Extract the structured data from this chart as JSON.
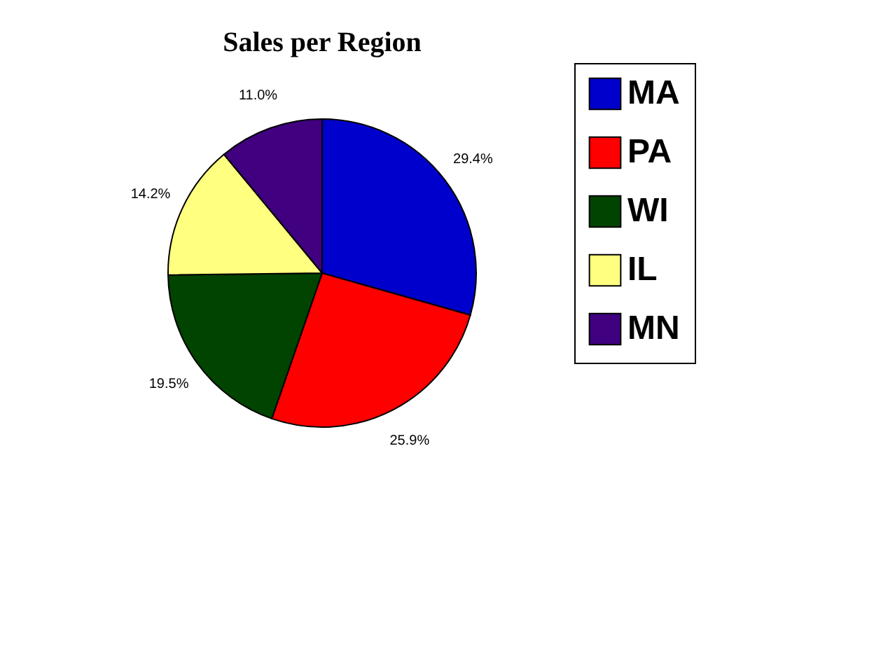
{
  "chart_data": {
    "type": "pie",
    "title": "Sales per Region",
    "categories": [
      "MA",
      "PA",
      "WI",
      "IL",
      "MN"
    ],
    "values": [
      29.4,
      25.9,
      19.5,
      14.2,
      11.0
    ],
    "value_labels": [
      "29.4%",
      "25.9%",
      "19.5%",
      "14.2%",
      "11.0%"
    ],
    "colors": [
      "#0000cc",
      "#ff0000",
      "#004400",
      "#ffff80",
      "#400080"
    ],
    "legend": "right"
  }
}
